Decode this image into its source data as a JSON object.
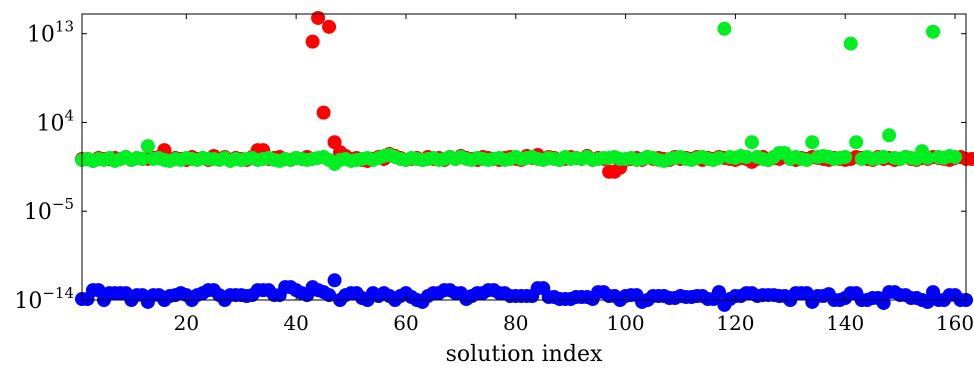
{
  "chart_data": {
    "type": "scatter",
    "xlabel": "solution index",
    "ylabel": "",
    "xlim": [
      1,
      162
    ],
    "ylim_log10": [
      -14,
      15
    ],
    "y_scale": "log",
    "grid": false,
    "legend": "none",
    "x_ticks": [
      {
        "value": 20,
        "label": "20"
      },
      {
        "value": 40,
        "label": "40"
      },
      {
        "value": 60,
        "label": "60"
      },
      {
        "value": 80,
        "label": "80"
      },
      {
        "value": 100,
        "label": "100"
      },
      {
        "value": 120,
        "label": "120"
      },
      {
        "value": 140,
        "label": "140"
      },
      {
        "value": 160,
        "label": "160"
      }
    ],
    "y_ticks": [
      {
        "exp": -14,
        "base": "10",
        "sup": "−14"
      },
      {
        "exp": -5,
        "base": "10",
        "sup": "−5"
      },
      {
        "exp": 4,
        "base": "10",
        "sup": "4"
      },
      {
        "exp": 13,
        "base": "10",
        "sup": "13"
      }
    ],
    "series": [
      {
        "color": "#ff0000",
        "log10_values": [
          0.3,
          0.3,
          0.1,
          0.4,
          0.3,
          0.3,
          0.4,
          0.3,
          0.5,
          0.2,
          0.4,
          0.3,
          0.3,
          0.4,
          0.5,
          1.2,
          0.2,
          0.4,
          0.3,
          0.2,
          0.5,
          0.3,
          0.4,
          0.2,
          0.6,
          0.3,
          0.5,
          0.2,
          0.4,
          0.3,
          0.2,
          0.5,
          1.2,
          1.2,
          0.3,
          0.4,
          0.5,
          0.3,
          0.2,
          0.4,
          0.3,
          0.5,
          12.2,
          14.6,
          5.0,
          13.7,
          2.0,
          1.0,
          0.6,
          0.3,
          0.4,
          0.2,
          0.1,
          0.3,
          0.5,
          0.3,
          0.8,
          0.6,
          0.4,
          0.2,
          0.3,
          0.4,
          0.2,
          0.5,
          0.3,
          0.4,
          0.2,
          0.5,
          0.3,
          0.6,
          0.4,
          0.3,
          0.2,
          0.5,
          0.4,
          0.3,
          0.2,
          0.4,
          0.5,
          0.3,
          0.2,
          0.6,
          0.4,
          0.7,
          0.3,
          0.5,
          0.4,
          0.2,
          0.3,
          0.5,
          0.4,
          0.3,
          0.6,
          0.2,
          0.4,
          0.3,
          -1.0,
          -1.0,
          -0.6,
          0.2,
          0.3,
          0.4,
          0.2,
          0.5,
          0.3,
          0.4,
          0.3,
          0.2,
          0.5,
          0.3,
          0.4,
          0.3,
          0.5,
          0.2,
          0.4,
          0.3,
          0.5,
          0.4,
          0.3,
          0.2,
          0.4,
          0.3,
          0.0,
          0.3,
          0.5,
          0.2,
          0.4,
          0.3,
          0.5,
          0.3,
          0.2,
          0.4,
          0.3,
          0.5,
          0.4,
          0.3,
          0.2,
          0.4,
          0.3,
          0.2,
          0.3,
          0.5,
          0.4,
          0.3,
          0.2,
          0.5,
          0.3,
          0.4,
          0.2,
          0.3,
          0.5,
          0.3,
          0.2,
          0.4,
          0.3,
          0.5,
          0.4,
          0.3,
          0.2,
          0.4,
          0.5,
          0.3,
          0.3,
          0.4
        ]
      },
      {
        "color": "#00ee22",
        "log10_values": [
          0.2,
          0.3,
          0.1,
          0.3,
          0.2,
          0.4,
          0.1,
          0.3,
          0.5,
          0.2,
          0.4,
          0.3,
          1.6,
          0.3,
          0.4,
          0.2,
          0.1,
          0.3,
          0.2,
          0.4,
          0.3,
          0.2,
          0.4,
          0.3,
          0.3,
          0.2,
          0.4,
          0.1,
          0.3,
          0.2,
          0.3,
          0.4,
          0.2,
          0.3,
          0.4,
          0.2,
          0.1,
          0.3,
          0.2,
          0.4,
          0.3,
          0.2,
          0.3,
          0.4,
          0.5,
          0.2,
          -0.2,
          0.2,
          0.3,
          0.1,
          0.2,
          0.3,
          0.4,
          0.2,
          0.4,
          0.6,
          0.7,
          0.5,
          0.3,
          0.2,
          0.4,
          0.3,
          0.2,
          0.3,
          0.4,
          0.2,
          0.3,
          0.5,
          0.3,
          0.5,
          0.3,
          0.2,
          0.4,
          0.3,
          0.2,
          0.3,
          0.4,
          0.2,
          0.3,
          0.5,
          0.3,
          0.4,
          0.5,
          0.3,
          0.2,
          0.4,
          0.3,
          0.2,
          0.5,
          0.3,
          0.4,
          0.3,
          0.5,
          0.2,
          0.3,
          0.4,
          0.4,
          0.5,
          0.3,
          0.3,
          0.4,
          0.2,
          0.3,
          0.5,
          0.4,
          0.2,
          0.1,
          0.3,
          0.4,
          0.5,
          0.3,
          0.2,
          0.4,
          0.5,
          0.3,
          0.2,
          0.4,
          13.5,
          0.5,
          0.4,
          0.6,
          0.5,
          2.0,
          0.5,
          0.3,
          0.2,
          0.5,
          0.9,
          0.9,
          0.3,
          0.5,
          0.3,
          0.2,
          2.0,
          0.5,
          0.6,
          0.5,
          0.3,
          0.4,
          0.5,
          12.0,
          2.0,
          0.3,
          0.5,
          0.3,
          0.4,
          0.5,
          2.7,
          0.4,
          0.3,
          0.5,
          0.4,
          0.3,
          1.1,
          0.4,
          13.2,
          0.5,
          0.4,
          0.6,
          0.5
        ]
      },
      {
        "color": "#0000ff",
        "log10_values": [
          -13.9,
          -13.9,
          -13.0,
          -13.0,
          -14.0,
          -13.3,
          -13.3,
          -13.3,
          -13.3,
          -14.0,
          -13.5,
          -13.5,
          -14.2,
          -13.5,
          -13.5,
          -14.0,
          -13.6,
          -13.5,
          -13.3,
          -13.5,
          -14.0,
          -13.5,
          -13.3,
          -13.0,
          -13.0,
          -13.5,
          -14.0,
          -13.5,
          -13.5,
          -13.5,
          -13.6,
          -13.5,
          -13.0,
          -13.0,
          -13.0,
          -13.5,
          -13.5,
          -12.7,
          -12.7,
          -13.0,
          -13.3,
          -13.5,
          -12.7,
          -13.0,
          -13.2,
          -13.5,
          -12.0,
          -14.0,
          -13.5,
          -13.3,
          -13.3,
          -13.8,
          -14.0,
          -13.3,
          -13.6,
          -13.3,
          -13.6,
          -14.0,
          -13.6,
          -13.3,
          -13.7,
          -14.0,
          -14.2,
          -13.6,
          -13.3,
          -13.3,
          -13.0,
          -13.0,
          -13.3,
          -13.3,
          -13.9,
          -13.6,
          -13.3,
          -13.3,
          -13.0,
          -13.0,
          -13.3,
          -13.3,
          -13.6,
          -13.6,
          -13.6,
          -13.6,
          -13.6,
          -12.8,
          -12.8,
          -13.7,
          -13.7,
          -13.9,
          -13.9,
          -13.9,
          -13.7,
          -13.7,
          -13.7,
          -13.9,
          -13.2,
          -13.2,
          -13.6,
          -13.6,
          -14.0,
          -13.6,
          -13.5,
          -13.5,
          -14.2,
          -14.0,
          -13.6,
          -13.6,
          -13.6,
          -13.8,
          -13.8,
          -13.6,
          -13.7,
          -13.7,
          -13.6,
          -13.6,
          -13.9,
          -13.9,
          -13.2,
          -14.5,
          -13.9,
          -13.6,
          -13.6,
          -13.3,
          -13.3,
          -13.6,
          -13.5,
          -13.5,
          -13.5,
          -13.6,
          -13.6,
          -14.0,
          -13.3,
          -13.3,
          -13.3,
          -14.2,
          -13.6,
          -13.6,
          -13.4,
          -14.0,
          -14.0,
          -13.8,
          -13.3,
          -13.3,
          -14.0,
          -14.0,
          -13.8,
          -13.8,
          -14.3,
          -13.2,
          -13.2,
          -13.5,
          -13.5,
          -13.8,
          -13.8,
          -14.0,
          -14.2,
          -13.2,
          -14.0,
          -14.0,
          -13.5,
          -13.5,
          -14.0,
          -14.0
        ]
      }
    ]
  }
}
